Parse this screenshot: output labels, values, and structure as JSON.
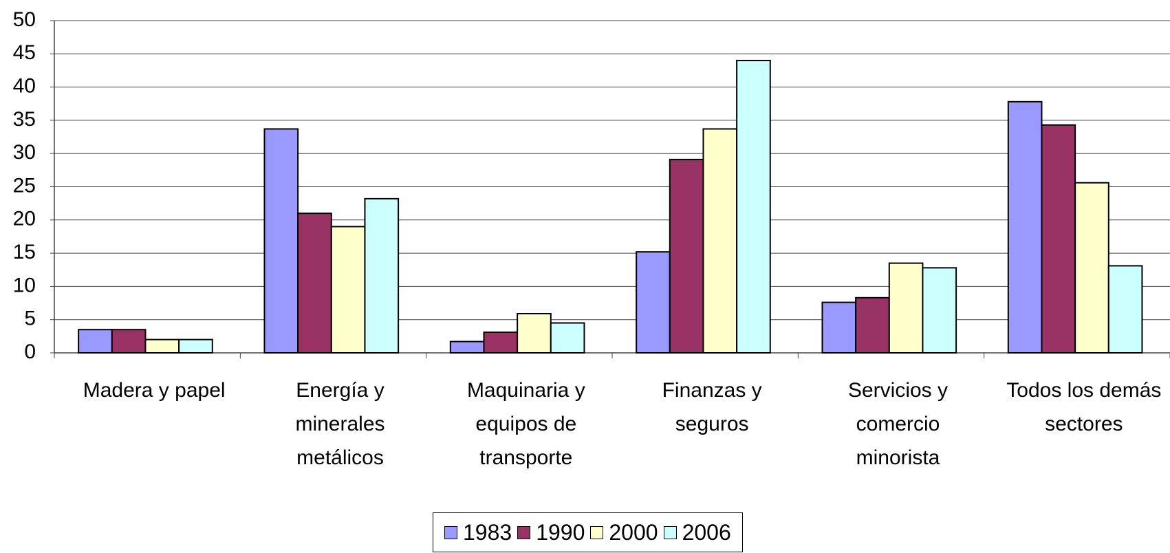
{
  "chart_data": {
    "type": "bar",
    "categories": [
      "Madera y papel",
      "Energía y minerales metálicos",
      "Maquinaria y equipos de transporte",
      "Finanzas y seguros",
      "Servicios y comercio minorista",
      "Todos los demás sectores"
    ],
    "series": [
      {
        "name": "1983",
        "color": "#9999ff",
        "values": [
          3.5,
          33.7,
          1.7,
          15.2,
          7.6,
          37.8
        ]
      },
      {
        "name": "1990",
        "color": "#993366",
        "values": [
          3.5,
          21,
          3.1,
          29.1,
          8.3,
          34.3
        ]
      },
      {
        "name": "2000",
        "color": "#ffffcc",
        "values": [
          2,
          19,
          5.9,
          33.7,
          13.5,
          25.6
        ]
      },
      {
        "name": "2006",
        "color": "#ccffff",
        "values": [
          2,
          23.2,
          4.5,
          44,
          12.8,
          13.1
        ]
      }
    ],
    "ylim": [
      0,
      50
    ],
    "yticks": [
      0,
      5,
      10,
      15,
      20,
      25,
      30,
      35,
      40,
      45,
      50
    ],
    "grid": true,
    "legend": "bottom"
  }
}
